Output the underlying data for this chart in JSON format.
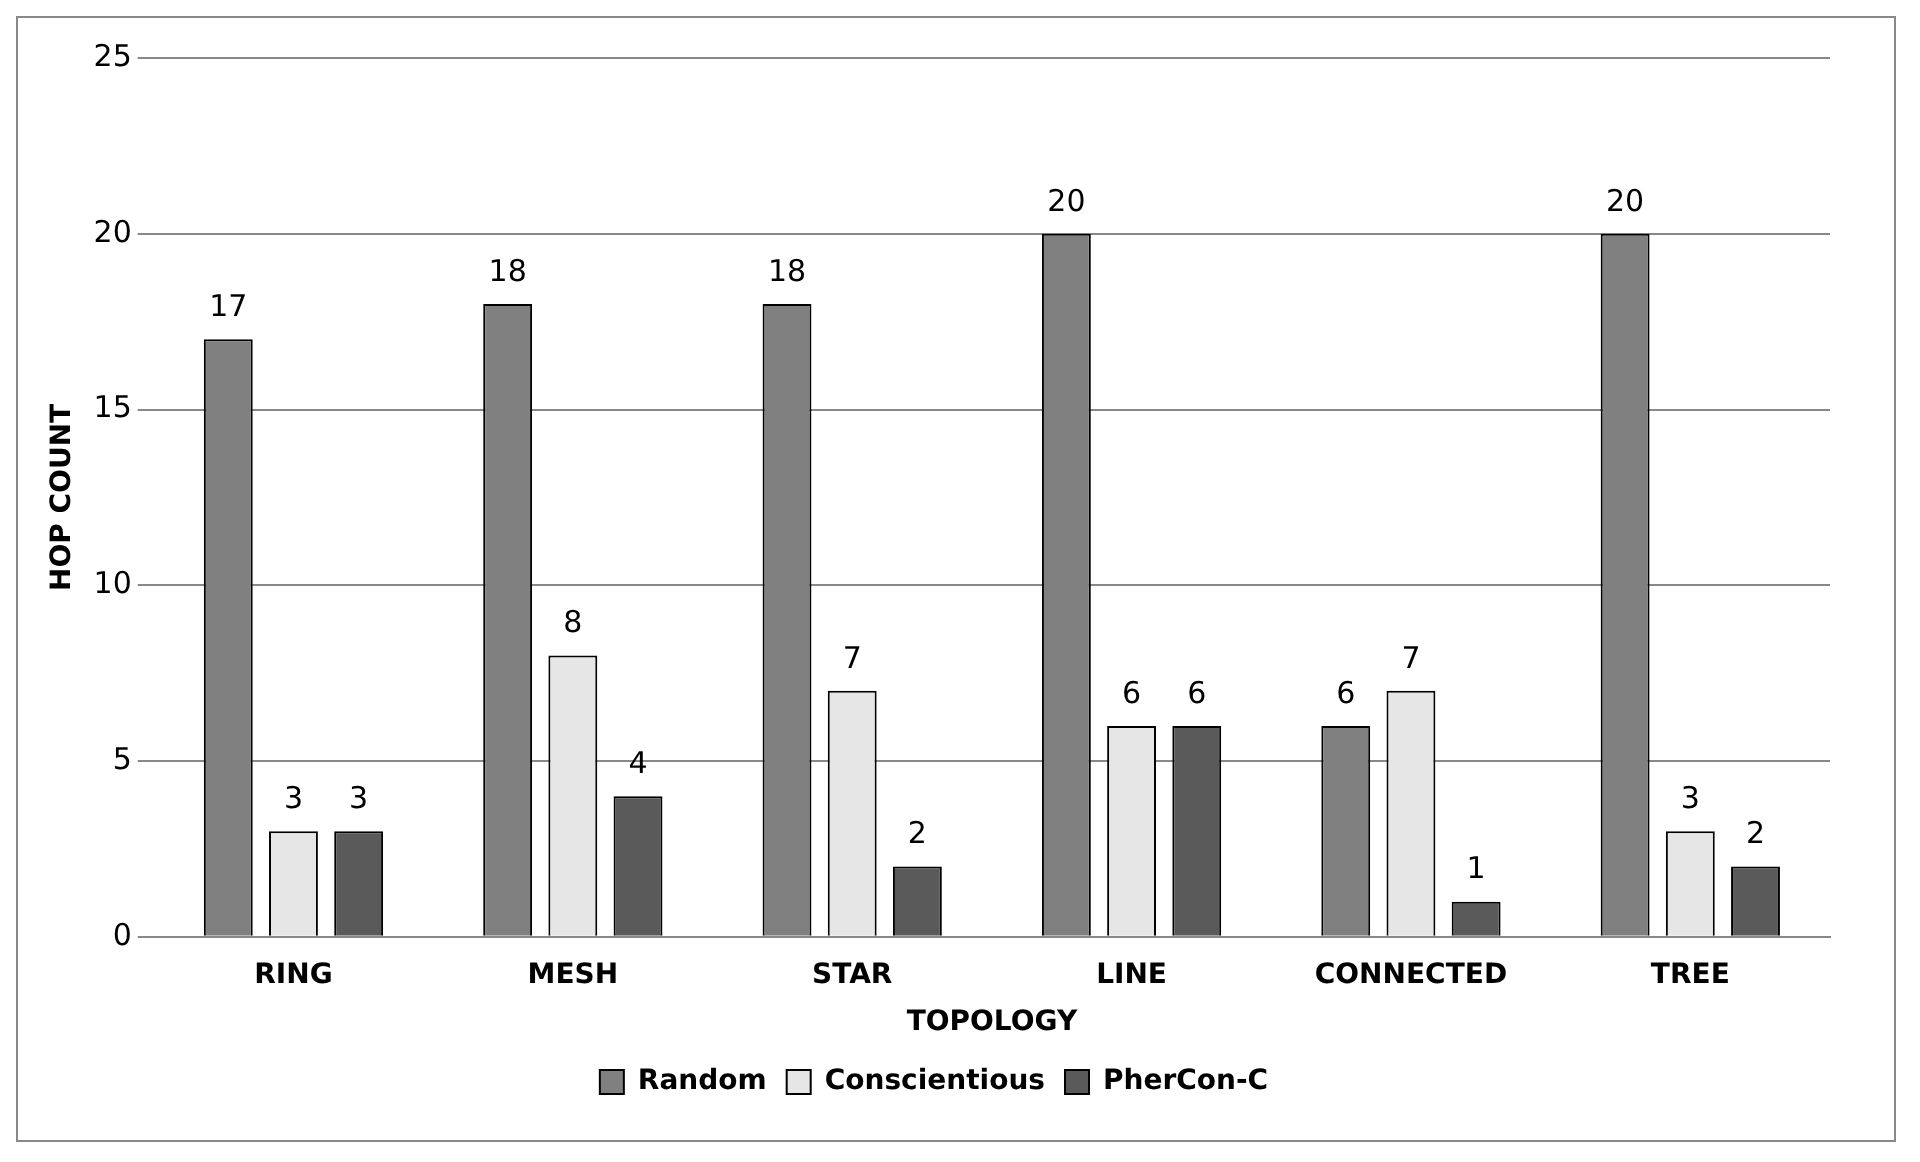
{
  "chart_data": {
    "type": "bar",
    "xlabel": "TOPOLOGY",
    "ylabel": "HOP COUNT",
    "categories": [
      "RING",
      "MESH",
      "STAR",
      "LINE",
      "CONNECTED",
      "TREE"
    ],
    "series": [
      {
        "name": "Random",
        "color": "#808080",
        "values": [
          17,
          18,
          18,
          20,
          6,
          20
        ]
      },
      {
        "name": "Conscientious",
        "color": "#e6e6e6",
        "values": [
          3,
          8,
          7,
          6,
          7,
          3
        ]
      },
      {
        "name": "PherCon-C",
        "color": "#5a5a5a",
        "values": [
          3,
          4,
          2,
          6,
          1,
          2
        ]
      }
    ],
    "ylim": [
      0,
      25
    ],
    "yticks": [
      0,
      5,
      10,
      15,
      20,
      25
    ],
    "grid": "y",
    "legend": "bottom",
    "data_labels": true
  }
}
